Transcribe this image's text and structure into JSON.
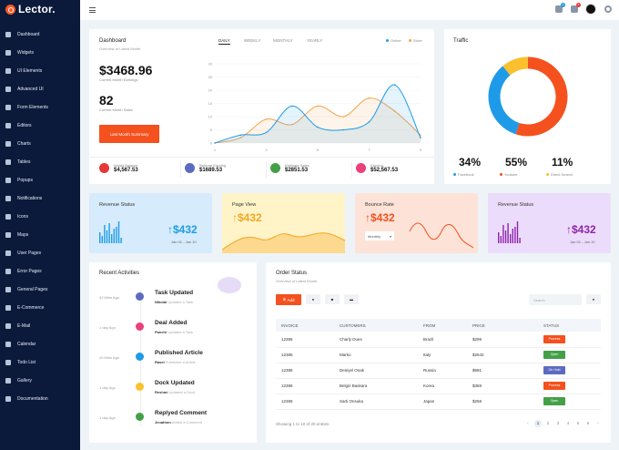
{
  "app": {
    "logo_text": "Lector."
  },
  "sidebar": {
    "items": [
      {
        "label": "Dashboard",
        "icon": "dashboard-icon"
      },
      {
        "label": "Widgets",
        "icon": "widgets-icon"
      },
      {
        "label": "UI Elements",
        "icon": "ui-elements-icon"
      },
      {
        "label": "Advanced UI",
        "icon": "advanced-ui-icon"
      },
      {
        "label": "Form Elements",
        "icon": "form-icon"
      },
      {
        "label": "Editors",
        "icon": "editor-icon"
      },
      {
        "label": "Charts",
        "icon": "chart-icon"
      },
      {
        "label": "Tables",
        "icon": "table-icon"
      },
      {
        "label": "Popups",
        "icon": "popup-icon"
      },
      {
        "label": "Notifications",
        "icon": "bell-icon"
      },
      {
        "label": "Icons",
        "icon": "icons-icon"
      },
      {
        "label": "Maps",
        "icon": "map-icon"
      },
      {
        "label": "User Pages",
        "icon": "user-icon"
      },
      {
        "label": "Error Pages",
        "icon": "error-icon"
      },
      {
        "label": "General Pages",
        "icon": "pages-icon"
      },
      {
        "label": "E-Commerce",
        "icon": "cart-icon"
      },
      {
        "label": "E-Mail",
        "icon": "mail-icon"
      },
      {
        "label": "Calendar",
        "icon": "calendar-icon"
      },
      {
        "label": "Todo List",
        "icon": "todo-icon"
      },
      {
        "label": "Gallery",
        "icon": "gallery-icon"
      },
      {
        "label": "Documentation",
        "icon": "doc-icon"
      }
    ]
  },
  "topbar": {
    "badge_mail": "4",
    "badge_bell": "5"
  },
  "dashboard": {
    "title": "Dashboard",
    "subtitle": "Overview of Latest Month",
    "earnings": "$3468.96",
    "earnings_label": "Current Month Earnings",
    "sales": "82",
    "sales_label": "Current Month Sales",
    "button": "Last Month Summary",
    "tabs": [
      "DAILY",
      "WEEKLY",
      "MONTHLY",
      "YEARLY"
    ],
    "legend": [
      "Online",
      "Store"
    ],
    "stats": [
      {
        "label": "Wallet Balance",
        "value": "$4,567.53",
        "color": "#e53935"
      },
      {
        "label": "Referral Earning",
        "value": "$1689.53",
        "color": "#5c6bc0"
      },
      {
        "label": "Estimate Sales",
        "value": "$2851.53",
        "color": "#43a047"
      },
      {
        "label": "Earning",
        "value": "$52,567.53",
        "color": "#ec407a"
      }
    ]
  },
  "chart_data": [
    {
      "type": "area",
      "x": [
        1,
        2,
        3,
        4,
        5,
        6,
        7,
        8,
        9
      ],
      "y_ticks": [
        0,
        5,
        10,
        15,
        20,
        25,
        30
      ],
      "ylim": [
        0,
        30
      ],
      "series": [
        {
          "name": "Online",
          "color": "#1e9be8",
          "values": [
            0,
            3,
            4,
            14,
            6,
            5,
            8,
            22,
            2
          ]
        },
        {
          "name": "Store",
          "color": "#f5a34b",
          "values": [
            0,
            2,
            9,
            7,
            14,
            10,
            17,
            12,
            3
          ]
        }
      ]
    },
    {
      "type": "pie",
      "title": "Traffic",
      "slices": [
        {
          "name": "Facebook",
          "value": 34,
          "label": "34%",
          "color": "#1e9be8"
        },
        {
          "name": "Youtube",
          "value": 55,
          "label": "55%",
          "color": "#f4511e"
        },
        {
          "name": "Direct Search",
          "value": 11,
          "label": "11%",
          "color": "#fbc02d"
        }
      ]
    }
  ],
  "revenue_cards": [
    {
      "title": "Revenue Status",
      "value": "$432",
      "date": "Jan 01 - Jan 10",
      "bg": "#d6ebfb",
      "color": "#1e9be8"
    },
    {
      "title": "Page View",
      "value": "$432",
      "bg": "#fff4c8",
      "color": "#f5a623"
    },
    {
      "title": "Bounce Rate",
      "value": "$432",
      "dropdown": "Monthly",
      "bg": "#fde3d7",
      "color": "#f4511e"
    },
    {
      "title": "Revenue Status",
      "value": "$432",
      "date": "Jan 01 - Jan 10",
      "bg": "#ecdcfb",
      "color": "#8e24aa"
    }
  ],
  "activities": {
    "title": "Recent Activities",
    "items": [
      {
        "time": "42 Mins Ago",
        "title": "Task Updated",
        "name": "Nikolai",
        "action": "Updated a Task",
        "color": "#5c6bc0"
      },
      {
        "time": "1 day Ago",
        "title": "Deal Added",
        "name": "Panchi",
        "action": "Updated a Task",
        "color": "#ec407a"
      },
      {
        "time": "40 Mins Ago",
        "title": "Published Article",
        "name": "Rasel",
        "action": "Published a Article",
        "color": "#1e9be8"
      },
      {
        "time": "1 day Ago",
        "title": "Dock Updated",
        "name": "Reshmi",
        "action": "Updated a Dock",
        "color": "#fbc02d"
      },
      {
        "time": "1 day Ago",
        "title": "Replyed Comment",
        "name": "Jenathon",
        "action": "Added a Comment",
        "color": "#43a047"
      }
    ]
  },
  "orders": {
    "title": "Order Status",
    "subtitle": "Overview of Latest Month",
    "add_label": "Add",
    "search_placeholder": "Search",
    "columns": [
      "INVOICE",
      "CUSTOMERS",
      "FROM",
      "PRICE",
      "STATUS"
    ],
    "rows": [
      {
        "invoice": "12386",
        "customer": "Charly Dues",
        "from": "Brazil",
        "price": "$299",
        "status": "Process",
        "status_color": "#f4511e"
      },
      {
        "invoice": "12386",
        "customer": "Marko",
        "from": "Italy",
        "price": "$2642",
        "status": "Open",
        "status_color": "#43a047"
      },
      {
        "invoice": "12386",
        "customer": "Deniyel Onak",
        "from": "Russia",
        "price": "$981",
        "status": "On Hold",
        "status_color": "#5c6bc0"
      },
      {
        "invoice": "12386",
        "customer": "Belgiri Baskara",
        "from": "Korea",
        "price": "$369",
        "status": "Process",
        "status_color": "#f4511e"
      },
      {
        "invoice": "12386",
        "customer": "Sarti Onsuka",
        "from": "Japan",
        "price": "$258",
        "status": "Open",
        "status_color": "#43a047"
      }
    ],
    "footer": "Showing 1 to 10 of 20 entries",
    "pages": [
      "1",
      "2",
      "3",
      "4",
      "5",
      "6"
    ]
  }
}
